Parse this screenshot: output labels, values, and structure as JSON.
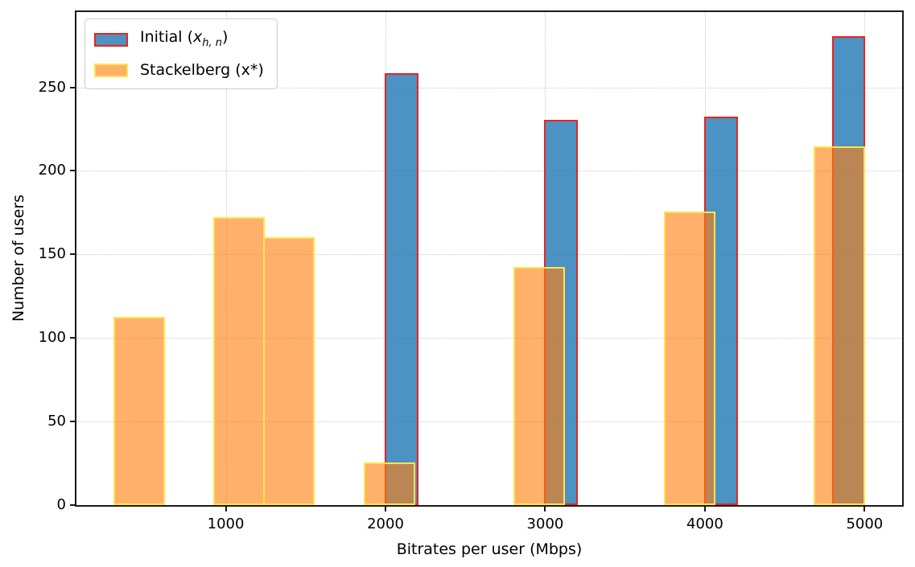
{
  "axes": {
    "xlabel": "Bitrates per user (Mbps)",
    "ylabel": "Number of users"
  },
  "legend": {
    "items": [
      {
        "pre": "Initial (",
        "var": "x",
        "sub": "h, n",
        "post": ")"
      },
      {
        "label": "Stackelberg (x*)"
      }
    ]
  },
  "chart_data": {
    "type": "bar",
    "subtype": "overlapping-histograms",
    "title": "",
    "xlabel": "Bitrates per user (Mbps)",
    "ylabel": "Number of users",
    "xlim": [
      65,
      5235
    ],
    "ylim": [
      0,
      295
    ],
    "x_ticks": [
      1000,
      2000,
      3000,
      4000,
      5000
    ],
    "y_ticks": [
      0,
      50,
      100,
      150,
      200,
      250
    ],
    "grid": "dotted",
    "legend_position": "upper left",
    "colors": {
      "initial_fill": "rgba(31,119,180,0.8)",
      "initial_edge": "#e8241f",
      "stackelberg_fill": "rgba(255,127,14,0.62)",
      "stackelberg_edge": "#ffe44d",
      "spine": "#1a1a1a",
      "grid": "#c9c9c9"
    },
    "series": [
      {
        "name": "Initial (x_h,n)",
        "fill": "rgba(31,119,180,0.8)",
        "edge": "#e8241f",
        "bars": [
          {
            "x_from": 2000,
            "x_to": 2200,
            "count": 258
          },
          {
            "x_from": 3000,
            "x_to": 3200,
            "count": 230
          },
          {
            "x_from": 4000,
            "x_to": 4200,
            "count": 232
          },
          {
            "x_from": 4800,
            "x_to": 5000,
            "count": 280
          }
        ]
      },
      {
        "name": "Stackelberg (x*)",
        "fill": "rgba(255,127,14,0.62)",
        "edge": "#ffe44d",
        "bars": [
          {
            "x_from": 300,
            "x_to": 613,
            "count": 112
          },
          {
            "x_from": 927,
            "x_to": 1240,
            "count": 172
          },
          {
            "x_from": 1240,
            "x_to": 1553,
            "count": 160
          },
          {
            "x_from": 1867,
            "x_to": 2180,
            "count": 25
          },
          {
            "x_from": 2807,
            "x_to": 3120,
            "count": 142
          },
          {
            "x_from": 3747,
            "x_to": 4060,
            "count": 175
          },
          {
            "x_from": 4687,
            "x_to": 5000,
            "count": 214
          }
        ]
      }
    ]
  }
}
